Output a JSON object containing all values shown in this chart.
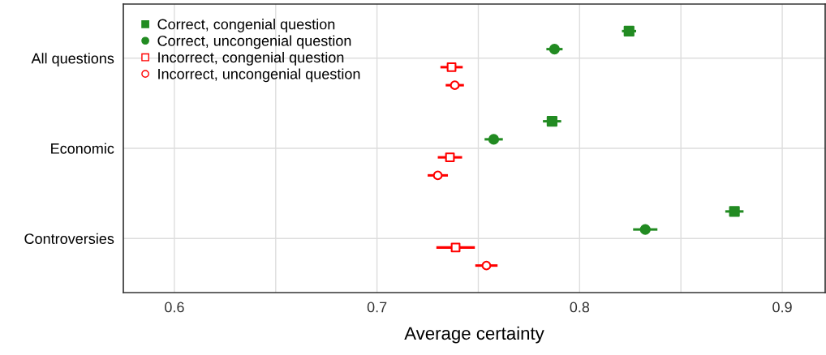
{
  "chart_data": {
    "type": "scatter",
    "orientation": "horizontal",
    "xlabel": "Average certainty",
    "categories": [
      "All questions",
      "Economic",
      "Controversies"
    ],
    "series": [
      {
        "name": "Correct, congenial question",
        "color": "#228b22",
        "marker": "square",
        "values": [
          0.8244,
          0.7864,
          0.8764
        ],
        "errors": [
          0.0035,
          0.0045,
          0.0045
        ]
      },
      {
        "name": "Correct, uncongenial question",
        "color": "#228b22",
        "marker": "circle",
        "values": [
          0.7876,
          0.7576,
          0.8324
        ],
        "errors": [
          0.004,
          0.0045,
          0.006
        ]
      },
      {
        "name": "Incorrect, congenial question",
        "color": "#ff0000",
        "marker": "square-open",
        "values": [
          0.7368,
          0.736,
          0.7388
        ],
        "errors": [
          0.0055,
          0.006,
          0.0095
        ]
      },
      {
        "name": "Incorrect, uncongenial question",
        "color": "#ff0000",
        "marker": "circle-open",
        "values": [
          0.7384,
          0.73,
          0.754
        ],
        "errors": [
          0.0045,
          0.005,
          0.0055
        ]
      }
    ],
    "xlim": [
      0.5748,
      0.9212
    ],
    "xticks": [
      0.6,
      {
        "value": 0.65,
        "label": null
      },
      0.7,
      {
        "value": 0.75,
        "label": null
      },
      0.8,
      {
        "value": 0.85,
        "label": null
      },
      0.9
    ],
    "grid": true,
    "legend": "top left"
  }
}
